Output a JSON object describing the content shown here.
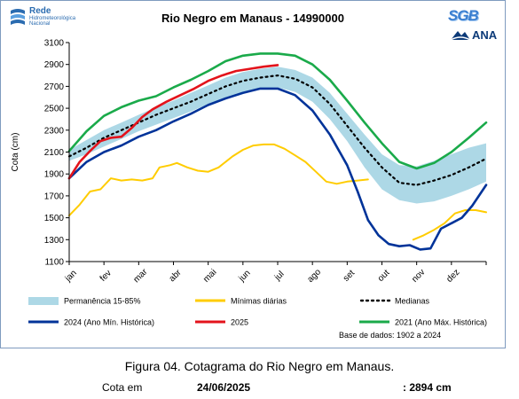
{
  "header": {
    "title": "Rio Negro em Manaus - 14990000",
    "logo_left_main": "Rede",
    "logo_left_sub1": "Hidrometeorológica",
    "logo_left_sub2": "Nacional",
    "logo_sgb": "SGB",
    "logo_ana": "ANA"
  },
  "footer": {
    "caption": "Figura 04. Cotagrama do Rio Negro em Manaus.",
    "cota_label": "Cota em",
    "cota_date": "24/06/2025",
    "cota_value": ": 2894 cm",
    "base": "Base de dados: 1902 a 2024"
  },
  "colors": {
    "band": "#add8e6",
    "minimas": "#ffcc00",
    "medianas": "#000000",
    "y2024": "#003399",
    "y2025": "#e3131b",
    "y2021": "#1aaa4a"
  },
  "chart_data": {
    "type": "line",
    "title": "Rio Negro em Manaus - 14990000",
    "xlabel": "",
    "ylabel": "Cota (cm)",
    "ylim": [
      1100,
      3100
    ],
    "yticks": [
      1100,
      1300,
      1500,
      1700,
      1900,
      2100,
      2300,
      2500,
      2700,
      2900,
      3100
    ],
    "xticks": [
      "jan",
      "fev",
      "mar",
      "abr",
      "mai",
      "jun",
      "jul",
      "ago",
      "set",
      "out",
      "nov",
      "dez"
    ],
    "grid": false,
    "legend": "bottom",
    "x_unit": "month",
    "band": {
      "name": "Permanência 15-85%",
      "x": [
        0,
        0.5,
        1,
        1.5,
        2,
        2.5,
        3,
        3.5,
        4,
        4.5,
        5,
        5.5,
        6,
        6.5,
        7,
        7.5,
        8,
        8.5,
        9,
        9.5,
        10,
        10.5,
        11,
        11.5,
        12
      ],
      "lower": [
        2020,
        2080,
        2150,
        2220,
        2290,
        2350,
        2410,
        2470,
        2540,
        2600,
        2650,
        2680,
        2690,
        2650,
        2560,
        2400,
        2200,
        1960,
        1760,
        1660,
        1630,
        1650,
        1700,
        1760,
        1830
      ],
      "upper": [
        2120,
        2210,
        2300,
        2370,
        2440,
        2510,
        2570,
        2640,
        2710,
        2780,
        2830,
        2860,
        2880,
        2850,
        2780,
        2640,
        2450,
        2260,
        2080,
        1980,
        1970,
        2020,
        2080,
        2140,
        2180
      ]
    },
    "series": [
      {
        "name": "Mínimas diárias",
        "x": [
          0,
          0.3,
          0.6,
          0.9,
          1.2,
          1.5,
          1.8,
          2.1,
          2.4,
          2.6,
          2.9,
          3.1,
          3.4,
          3.7,
          4.0,
          4.3,
          4.7,
          5.0,
          5.3,
          5.6,
          5.9,
          6.2,
          6.5,
          6.8,
          7.1,
          7.4,
          7.7,
          8.0,
          8.3,
          8.6,
          null,
          9.9,
          10.2,
          10.5,
          10.8,
          11.1,
          11.4,
          11.7,
          12.0
        ],
        "y": [
          1520,
          1620,
          1740,
          1760,
          1860,
          1840,
          1850,
          1840,
          1860,
          1960,
          1980,
          2000,
          1960,
          1930,
          1920,
          1960,
          2060,
          2120,
          2160,
          2170,
          2170,
          2130,
          2070,
          2010,
          1920,
          1830,
          1810,
          1830,
          1840,
          1850,
          null,
          1300,
          1340,
          1390,
          1450,
          1540,
          1570,
          1570,
          1550
        ]
      },
      {
        "name": "Medianas",
        "x": [
          0,
          0.5,
          1,
          1.5,
          2,
          2.5,
          3,
          3.5,
          4,
          4.5,
          5,
          5.5,
          6,
          6.5,
          7,
          7.5,
          8,
          8.5,
          9,
          9.5,
          10,
          10.5,
          11,
          11.5,
          12
        ],
        "y": [
          2060,
          2140,
          2230,
          2300,
          2370,
          2440,
          2500,
          2560,
          2630,
          2700,
          2750,
          2780,
          2800,
          2770,
          2690,
          2540,
          2340,
          2140,
          1960,
          1820,
          1800,
          1840,
          1890,
          1960,
          2040
        ]
      },
      {
        "name": "2024 (Ano Mín. Histórica)",
        "x": [
          0,
          0.5,
          1,
          1.5,
          2,
          2.5,
          3,
          3.5,
          4,
          4.5,
          5,
          5.5,
          6,
          6.5,
          7,
          7.5,
          8,
          8.3,
          8.6,
          8.9,
          9.2,
          9.5,
          9.8,
          10.1,
          10.4,
          10.7,
          11,
          11.3,
          11.6,
          12
        ],
        "y": [
          1860,
          2010,
          2100,
          2160,
          2240,
          2300,
          2380,
          2450,
          2530,
          2590,
          2640,
          2680,
          2680,
          2620,
          2480,
          2260,
          1980,
          1740,
          1480,
          1340,
          1260,
          1240,
          1250,
          1210,
          1220,
          1400,
          1450,
          1500,
          1610,
          1800
        ]
      },
      {
        "name": "2025",
        "x": [
          0,
          0.3,
          0.6,
          0.9,
          1.2,
          1.5,
          1.8,
          2.1,
          2.4,
          2.8,
          3.2,
          3.6,
          4.0,
          4.4,
          4.8,
          5.2,
          5.6,
          6.0
        ],
        "y": [
          1860,
          2010,
          2110,
          2200,
          2230,
          2240,
          2320,
          2420,
          2490,
          2560,
          2620,
          2680,
          2750,
          2800,
          2840,
          2860,
          2880,
          2894
        ]
      },
      {
        "name": "2021 (Ano Máx. Histórica)",
        "x": [
          0,
          0.5,
          1,
          1.5,
          2,
          2.5,
          3,
          3.5,
          4,
          4.5,
          5,
          5.5,
          6,
          6.5,
          7,
          7.5,
          8,
          8.5,
          9,
          9.5,
          10,
          10.5,
          11,
          11.5,
          12
        ],
        "y": [
          2110,
          2290,
          2430,
          2510,
          2570,
          2610,
          2690,
          2760,
          2840,
          2930,
          2980,
          3000,
          3000,
          2980,
          2900,
          2760,
          2570,
          2370,
          2180,
          2010,
          1950,
          2000,
          2100,
          2230,
          2370
        ]
      }
    ]
  }
}
